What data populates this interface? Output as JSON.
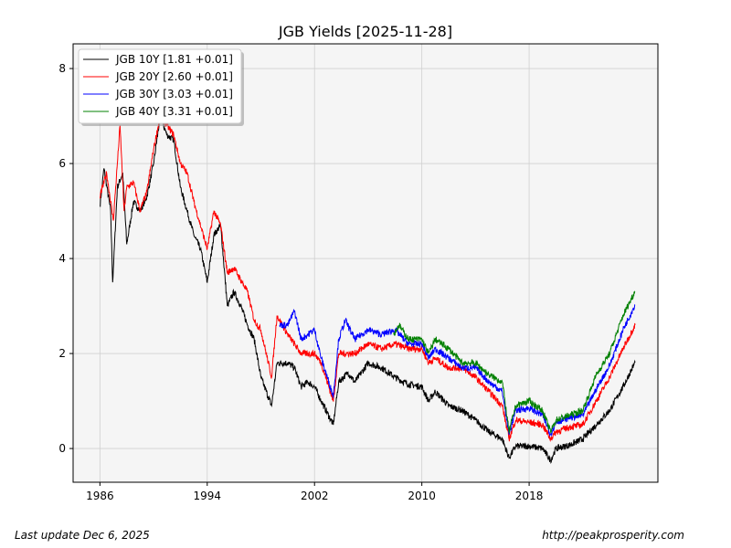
{
  "chart_data": {
    "type": "line",
    "title": "JGB Yields  [2025-11-28]",
    "xlabel": "",
    "ylabel": "",
    "xlim": [
      1984.0,
      2027.6
    ],
    "ylim": [
      -0.71,
      8.52
    ],
    "xticks": [
      1986,
      1994,
      2002,
      2010,
      2018
    ],
    "xtick_labels": [
      "1986",
      "1994",
      "2002",
      "2010",
      "2018"
    ],
    "yticks": [
      0,
      2,
      4,
      6,
      8
    ],
    "ytick_labels": [
      "0",
      "2",
      "4",
      "6",
      "8"
    ],
    "grid": true,
    "legend_position": "top-left",
    "series": [
      {
        "name": "JGB 10Y [1.81 +0.01]",
        "color": "#000000",
        "x": [
          1986.0,
          1986.3,
          1986.8,
          1986.95,
          1987.3,
          1987.7,
          1988.0,
          1988.5,
          1989.0,
          1989.5,
          1990.0,
          1990.5,
          1991.0,
          1991.5,
          1992.0,
          1992.5,
          1993.0,
          1993.5,
          1994.0,
          1994.5,
          1995.0,
          1995.5,
          1996.0,
          1996.5,
          1997.0,
          1997.5,
          1998.0,
          1998.8,
          1999.2,
          2000.0,
          2000.5,
          2001.0,
          2001.5,
          2002.0,
          2002.5,
          2003.4,
          2003.8,
          2004.5,
          2005.0,
          2006.0,
          2007.0,
          2008.0,
          2009.0,
          2010.0,
          2010.5,
          2011.0,
          2012.0,
          2013.0,
          2014.0,
          2015.0,
          2016.0,
          2016.5,
          2017.0,
          2018.0,
          2019.0,
          2019.6,
          2020.0,
          2021.0,
          2022.0,
          2023.0,
          2024.0,
          2025.0,
          2025.9
        ],
        "y": [
          5.1,
          5.9,
          5.0,
          3.5,
          5.5,
          5.8,
          4.3,
          5.2,
          5.0,
          5.3,
          6.0,
          7.0,
          6.6,
          6.5,
          5.5,
          5.0,
          4.5,
          4.2,
          3.5,
          4.5,
          4.7,
          3.0,
          3.3,
          3.0,
          2.6,
          2.3,
          1.5,
          0.9,
          1.8,
          1.8,
          1.7,
          1.3,
          1.4,
          1.3,
          1.0,
          0.5,
          1.4,
          1.6,
          1.4,
          1.8,
          1.7,
          1.5,
          1.35,
          1.3,
          1.0,
          1.2,
          0.9,
          0.8,
          0.6,
          0.35,
          0.2,
          -0.2,
          0.05,
          0.05,
          0.0,
          -0.25,
          0.0,
          0.07,
          0.2,
          0.5,
          0.8,
          1.3,
          1.81
        ]
      },
      {
        "name": "JGB 20Y [2.60 +0.01]",
        "color": "#ff0000",
        "x": [
          1986.0,
          1986.5,
          1987.0,
          1987.5,
          1987.8,
          1988.0,
          1988.5,
          1989.0,
          1989.5,
          1990.0,
          1990.5,
          1991.0,
          1991.5,
          1992.0,
          1992.5,
          1993.0,
          1994.0,
          1994.5,
          1995.0,
          1995.5,
          1996.0,
          1997.0,
          1997.5,
          1998.0,
          1998.8,
          1999.2,
          2000.0,
          2001.0,
          2002.0,
          2002.5,
          2003.4,
          2003.8,
          2005.0,
          2006.0,
          2007.0,
          2008.0,
          2009.0,
          2010.0,
          2010.5,
          2011.0,
          2012.0,
          2013.0,
          2014.0,
          2015.0,
          2016.0,
          2016.5,
          2017.0,
          2018.0,
          2019.0,
          2019.6,
          2020.0,
          2021.0,
          2022.0,
          2023.0,
          2024.0,
          2025.0,
          2025.9
        ],
        "y": [
          5.3,
          5.8,
          4.8,
          6.8,
          5.0,
          5.5,
          5.6,
          5.0,
          5.4,
          6.3,
          7.0,
          6.8,
          6.6,
          6.0,
          5.8,
          5.2,
          4.2,
          5.0,
          4.7,
          3.7,
          3.8,
          3.3,
          2.7,
          2.5,
          1.5,
          2.8,
          2.4,
          2.0,
          2.0,
          1.8,
          1.0,
          2.0,
          2.0,
          2.2,
          2.1,
          2.2,
          2.1,
          2.1,
          1.8,
          1.9,
          1.7,
          1.7,
          1.5,
          1.2,
          0.9,
          0.2,
          0.6,
          0.55,
          0.5,
          0.2,
          0.35,
          0.45,
          0.5,
          1.0,
          1.5,
          2.1,
          2.6
        ]
      },
      {
        "name": "JGB 30Y [3.03 +0.01]",
        "color": "#0000ff",
        "x": [
          1999.4,
          2000.0,
          2000.5,
          2001.0,
          2002.0,
          2002.5,
          2003.4,
          2003.8,
          2004.3,
          2005.0,
          2006.0,
          2007.0,
          2008.0,
          2009.0,
          2010.0,
          2010.5,
          2011.0,
          2012.0,
          2013.0,
          2014.0,
          2015.0,
          2016.0,
          2016.5,
          2017.0,
          2018.0,
          2019.0,
          2019.6,
          2020.0,
          2021.0,
          2022.0,
          2023.0,
          2024.0,
          2025.0,
          2025.9
        ],
        "y": [
          2.6,
          2.6,
          2.9,
          2.3,
          2.5,
          1.9,
          1.1,
          2.3,
          2.7,
          2.3,
          2.5,
          2.4,
          2.5,
          2.2,
          2.2,
          1.9,
          2.1,
          1.9,
          1.7,
          1.7,
          1.4,
          1.2,
          0.3,
          0.8,
          0.85,
          0.7,
          0.3,
          0.55,
          0.65,
          0.7,
          1.25,
          1.75,
          2.5,
          3.03
        ]
      },
      {
        "name": "JGB 40Y [3.31 +0.01]",
        "color": "#008000",
        "x": [
          2007.9,
          2008.3,
          2009.0,
          2010.0,
          2010.5,
          2011.0,
          2012.0,
          2013.0,
          2014.0,
          2015.0,
          2016.0,
          2016.5,
          2017.0,
          2018.0,
          2019.0,
          2019.6,
          2020.0,
          2021.0,
          2022.0,
          2023.0,
          2024.0,
          2025.0,
          2025.9
        ],
        "y": [
          2.4,
          2.6,
          2.3,
          2.3,
          2.0,
          2.3,
          2.1,
          1.8,
          1.8,
          1.55,
          1.4,
          0.35,
          0.9,
          1.0,
          0.8,
          0.35,
          0.6,
          0.7,
          0.8,
          1.55,
          2.0,
          2.8,
          3.31
        ]
      }
    ]
  },
  "footer": {
    "last_update": "Last update Dec  6, 2025",
    "source": "http://peakprosperity.com"
  }
}
